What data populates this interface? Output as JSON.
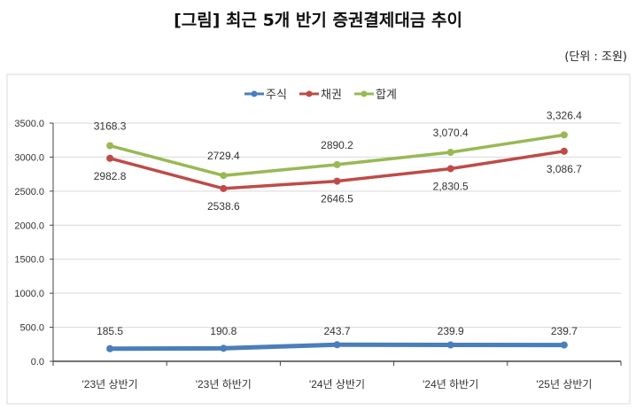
{
  "title": "[그림] 최근 5개 반기 증권결제대금 추이",
  "unit": "(단위 : 조원)",
  "chart_data": {
    "type": "line",
    "categories": [
      "'23년 상반기",
      "'23년 하반기",
      "'24년 상반기",
      "'24년 하반기",
      "'25년 상반기"
    ],
    "series": [
      {
        "name": "주식",
        "color": "#4a7ebb",
        "values": [
          185.5,
          190.8,
          243.7,
          239.9,
          239.7
        ],
        "labels": [
          "185.5",
          "190.8",
          "243.7",
          "239.9",
          "239.7"
        ]
      },
      {
        "name": "채권",
        "color": "#be4b48",
        "values": [
          2982.8,
          2538.6,
          2646.5,
          2830.5,
          3086.7
        ],
        "labels": [
          "2982.8",
          "2538.6",
          "2646.5",
          "2,830.5",
          "3,086.7"
        ]
      },
      {
        "name": "합계",
        "color": "#98b954",
        "values": [
          3168.3,
          2729.4,
          2890.2,
          3070.4,
          3326.4
        ],
        "labels": [
          "3168.3",
          "2729.4",
          "2890.2",
          "3,070.4",
          "3,326.4"
        ]
      }
    ],
    "yticks": [
      "0.0",
      "500.0",
      "1000.0",
      "1500.0",
      "2000.0",
      "2500.0",
      "3000.0",
      "3500.0"
    ],
    "ylim": [
      0,
      3500
    ],
    "grid": true,
    "legend": "top-center"
  }
}
